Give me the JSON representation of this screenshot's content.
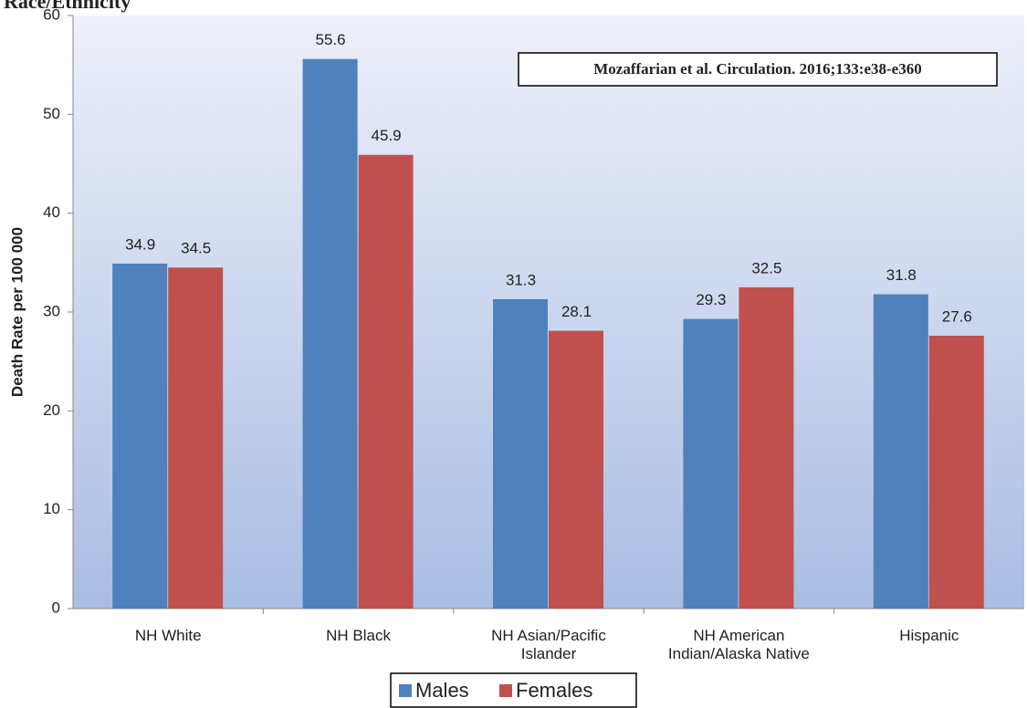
{
  "chart_data": {
    "type": "bar",
    "title": "Race/Ethnicity",
    "annotation": "Mozaffarian et al. Circulation. 2016;133:e38-e360",
    "y_label": "Death Rate per 100 000",
    "categories": [
      "NH White",
      "NH Black",
      "NH Asian/Pacific\nIslander",
      "NH American\nIndian/Alaska Native",
      "Hispanic"
    ],
    "series": [
      {
        "name": "Males",
        "color": "#4f81bd",
        "values": [
          34.9,
          55.6,
          31.3,
          29.3,
          31.8
        ]
      },
      {
        "name": "Females",
        "color": "#c0504d",
        "values": [
          34.5,
          45.9,
          28.1,
          32.5,
          27.6
        ]
      }
    ],
    "ylim": [
      0,
      60
    ],
    "yticks": [
      0,
      10,
      20,
      30,
      40,
      50,
      60
    ],
    "legend": "bottom"
  }
}
